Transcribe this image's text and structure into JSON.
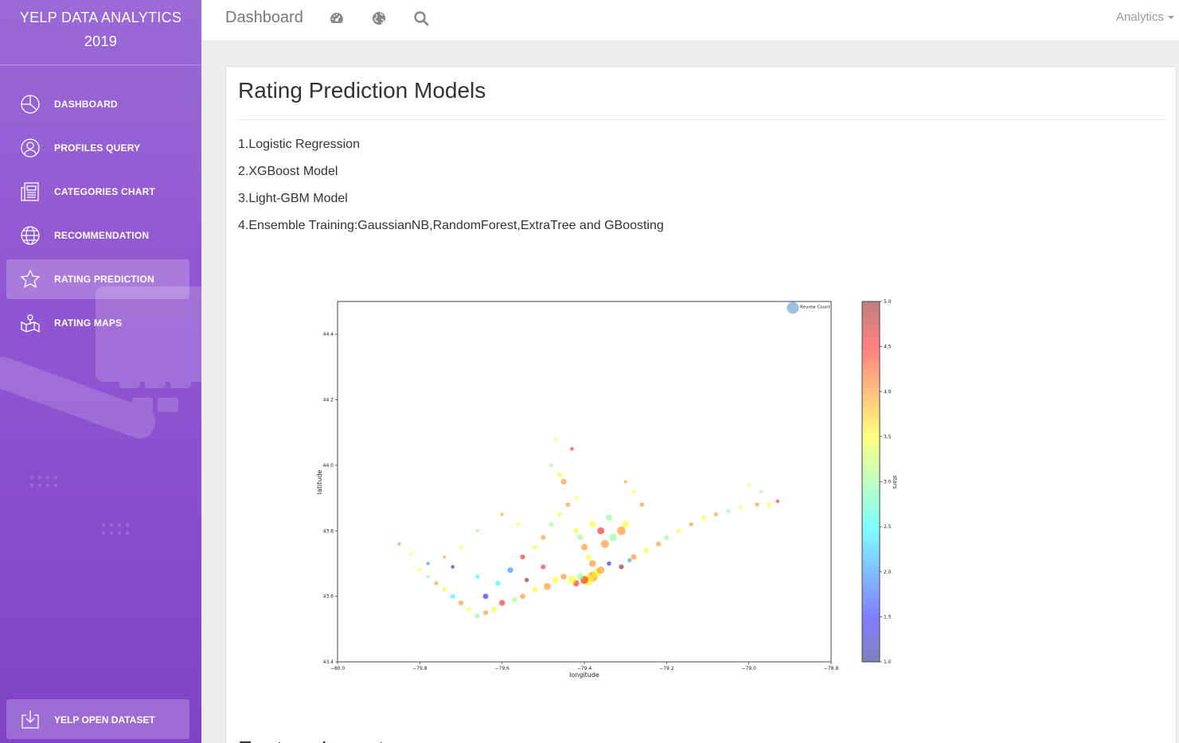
{
  "sidebar": {
    "brand_line1": "YELP DATA ANALYTICS",
    "brand_line2": "2019",
    "items": [
      {
        "label": "DASHBOARD",
        "icon": "pie-chart-icon",
        "active": false
      },
      {
        "label": "PROFILES QUERY",
        "icon": "user-icon",
        "active": false
      },
      {
        "label": "CATEGORIES CHART",
        "icon": "news-icon",
        "active": false
      },
      {
        "label": "RECOMMENDATION",
        "icon": "globe-icon",
        "active": false
      },
      {
        "label": "RATING PREDICTION",
        "icon": "star-icon",
        "active": true
      },
      {
        "label": "RATING MAPS",
        "icon": "map-icon",
        "active": false
      }
    ],
    "bottom_item": {
      "label": "YELP OPEN DATASET",
      "icon": "download-icon"
    }
  },
  "topbar": {
    "title": "Dashboard",
    "icons": [
      "dashboard-gauge-icon",
      "globe-icon",
      "search-icon"
    ],
    "menu_label": "Analytics"
  },
  "main": {
    "heading": "Rating Prediction Models",
    "models": [
      "1.Logistic Regression",
      "2.XGBoost Model",
      "3.Light-GBM Model",
      "4.Ensemble Training:GaussianNB,RandomForest,ExtraTree and GBoosting"
    ],
    "next_heading": "Feature Importance"
  },
  "chart_data": {
    "type": "scatter",
    "title": "",
    "xlabel": "longitude",
    "ylabel": "latitude",
    "xlim": [
      -80.0,
      -78.8
    ],
    "ylim": [
      43.4,
      44.5
    ],
    "xticks": [
      "−80.0",
      "−79.8",
      "−79.6",
      "−79.4",
      "−79.2",
      "−79.0",
      "−78.8"
    ],
    "yticks": [
      "43.4",
      "43.6",
      "43.8",
      "44.0",
      "44.2",
      "44.4"
    ],
    "legend": {
      "label": "Review Count",
      "placement": "top-right"
    },
    "colorbar": {
      "label": "stars",
      "range": [
        1.0,
        5.0
      ],
      "ticks": [
        "1.0",
        "1.5",
        "2.0",
        "2.5",
        "3.0",
        "3.5",
        "4.0",
        "4.5",
        "5.0"
      ],
      "colormap": "jet"
    },
    "point_encoding": {
      "x": "longitude",
      "y": "latitude",
      "color": "stars",
      "size": "review_count"
    },
    "points": [
      [
        -79.38,
        43.66,
        4.0,
        60
      ],
      [
        -79.39,
        43.65,
        3.5,
        80
      ],
      [
        -79.4,
        43.65,
        4.5,
        40
      ],
      [
        -79.41,
        43.66,
        3.0,
        30
      ],
      [
        -79.37,
        43.67,
        3.5,
        50
      ],
      [
        -79.36,
        43.68,
        4.0,
        35
      ],
      [
        -79.42,
        43.64,
        4.5,
        25
      ],
      [
        -79.43,
        43.65,
        3.5,
        45
      ],
      [
        -79.38,
        43.7,
        4.0,
        30
      ],
      [
        -79.39,
        43.72,
        3.5,
        20
      ],
      [
        -79.4,
        43.75,
        4.0,
        25
      ],
      [
        -79.41,
        43.78,
        3.0,
        20
      ],
      [
        -79.42,
        43.8,
        3.5,
        18
      ],
      [
        -79.35,
        43.76,
        4.0,
        40
      ],
      [
        -79.33,
        43.78,
        3.0,
        35
      ],
      [
        -79.36,
        43.8,
        4.5,
        30
      ],
      [
        -79.38,
        43.82,
        3.5,
        25
      ],
      [
        -79.31,
        43.8,
        4.0,
        45
      ],
      [
        -79.3,
        43.82,
        3.5,
        30
      ],
      [
        -79.34,
        43.84,
        3.0,
        25
      ],
      [
        -79.45,
        43.66,
        4.0,
        22
      ],
      [
        -79.47,
        43.65,
        3.5,
        25
      ],
      [
        -79.49,
        43.63,
        4.0,
        30
      ],
      [
        -79.52,
        43.62,
        3.5,
        20
      ],
      [
        -79.55,
        43.6,
        4.0,
        18
      ],
      [
        -79.57,
        43.59,
        3.0,
        15
      ],
      [
        -79.6,
        43.58,
        4.5,
        22
      ],
      [
        -79.62,
        43.56,
        3.5,
        18
      ],
      [
        -79.64,
        43.55,
        4.0,
        15
      ],
      [
        -79.66,
        43.54,
        3.0,
        14
      ],
      [
        -79.68,
        43.56,
        3.5,
        12
      ],
      [
        -79.7,
        43.58,
        4.0,
        15
      ],
      [
        -79.72,
        43.6,
        2.5,
        14
      ],
      [
        -79.74,
        43.62,
        3.5,
        12
      ],
      [
        -79.76,
        43.64,
        4.0,
        10
      ],
      [
        -79.78,
        43.66,
        3.0,
        8
      ],
      [
        -79.8,
        43.68,
        3.5,
        8
      ],
      [
        -79.58,
        43.68,
        2.0,
        20
      ],
      [
        -79.55,
        43.72,
        4.5,
        15
      ],
      [
        -79.52,
        43.75,
        3.5,
        12
      ],
      [
        -79.5,
        43.78,
        4.0,
        14
      ],
      [
        -79.48,
        43.82,
        3.0,
        12
      ],
      [
        -79.46,
        43.85,
        3.5,
        10
      ],
      [
        -79.44,
        43.88,
        4.0,
        12
      ],
      [
        -79.42,
        43.9,
        3.5,
        10
      ],
      [
        -79.45,
        43.95,
        4.0,
        20
      ],
      [
        -79.46,
        43.97,
        3.5,
        15
      ],
      [
        -79.48,
        44.0,
        3.0,
        10
      ],
      [
        -79.43,
        44.05,
        4.5,
        8
      ],
      [
        -79.47,
        44.08,
        3.5,
        6
      ],
      [
        -79.28,
        43.72,
        4.0,
        20
      ],
      [
        -79.25,
        43.74,
        3.5,
        18
      ],
      [
        -79.22,
        43.76,
        4.0,
        15
      ],
      [
        -79.2,
        43.78,
        3.0,
        14
      ],
      [
        -79.17,
        43.8,
        3.5,
        12
      ],
      [
        -79.14,
        43.82,
        4.0,
        10
      ],
      [
        -79.11,
        43.84,
        3.5,
        12
      ],
      [
        -79.08,
        43.85,
        4.0,
        10
      ],
      [
        -79.05,
        43.86,
        3.0,
        10
      ],
      [
        -79.02,
        43.87,
        3.5,
        8
      ],
      [
        -78.98,
        43.88,
        4.0,
        10
      ],
      [
        -78.95,
        43.88,
        3.5,
        12
      ],
      [
        -78.93,
        43.89,
        4.5,
        8
      ],
      [
        -78.97,
        43.92,
        3.0,
        6
      ],
      [
        -79.0,
        43.94,
        3.5,
        6
      ],
      [
        -79.26,
        43.88,
        4.0,
        12
      ],
      [
        -79.28,
        43.92,
        3.5,
        8
      ],
      [
        -79.3,
        43.95,
        4.0,
        6
      ],
      [
        -79.56,
        43.82,
        3.5,
        8
      ],
      [
        -79.6,
        43.85,
        4.0,
        6
      ],
      [
        -79.66,
        43.8,
        3.0,
        8
      ],
      [
        -79.7,
        43.75,
        3.5,
        8
      ],
      [
        -79.74,
        43.72,
        4.0,
        6
      ],
      [
        -79.78,
        43.7,
        2.0,
        8
      ],
      [
        -79.82,
        43.73,
        3.5,
        6
      ],
      [
        -79.85,
        43.76,
        4.0,
        6
      ],
      [
        -79.64,
        43.6,
        1.5,
        18
      ],
      [
        -79.61,
        43.64,
        2.5,
        16
      ],
      [
        -79.5,
        43.69,
        4.5,
        14
      ],
      [
        -79.34,
        43.7,
        1.5,
        12
      ],
      [
        -79.31,
        43.69,
        5.0,
        15
      ],
      [
        -79.29,
        43.71,
        2.0,
        10
      ],
      [
        -79.54,
        43.65,
        5.0,
        12
      ],
      [
        -79.66,
        43.66,
        2.5,
        10
      ],
      [
        -79.72,
        43.69,
        1.0,
        8
      ]
    ]
  }
}
